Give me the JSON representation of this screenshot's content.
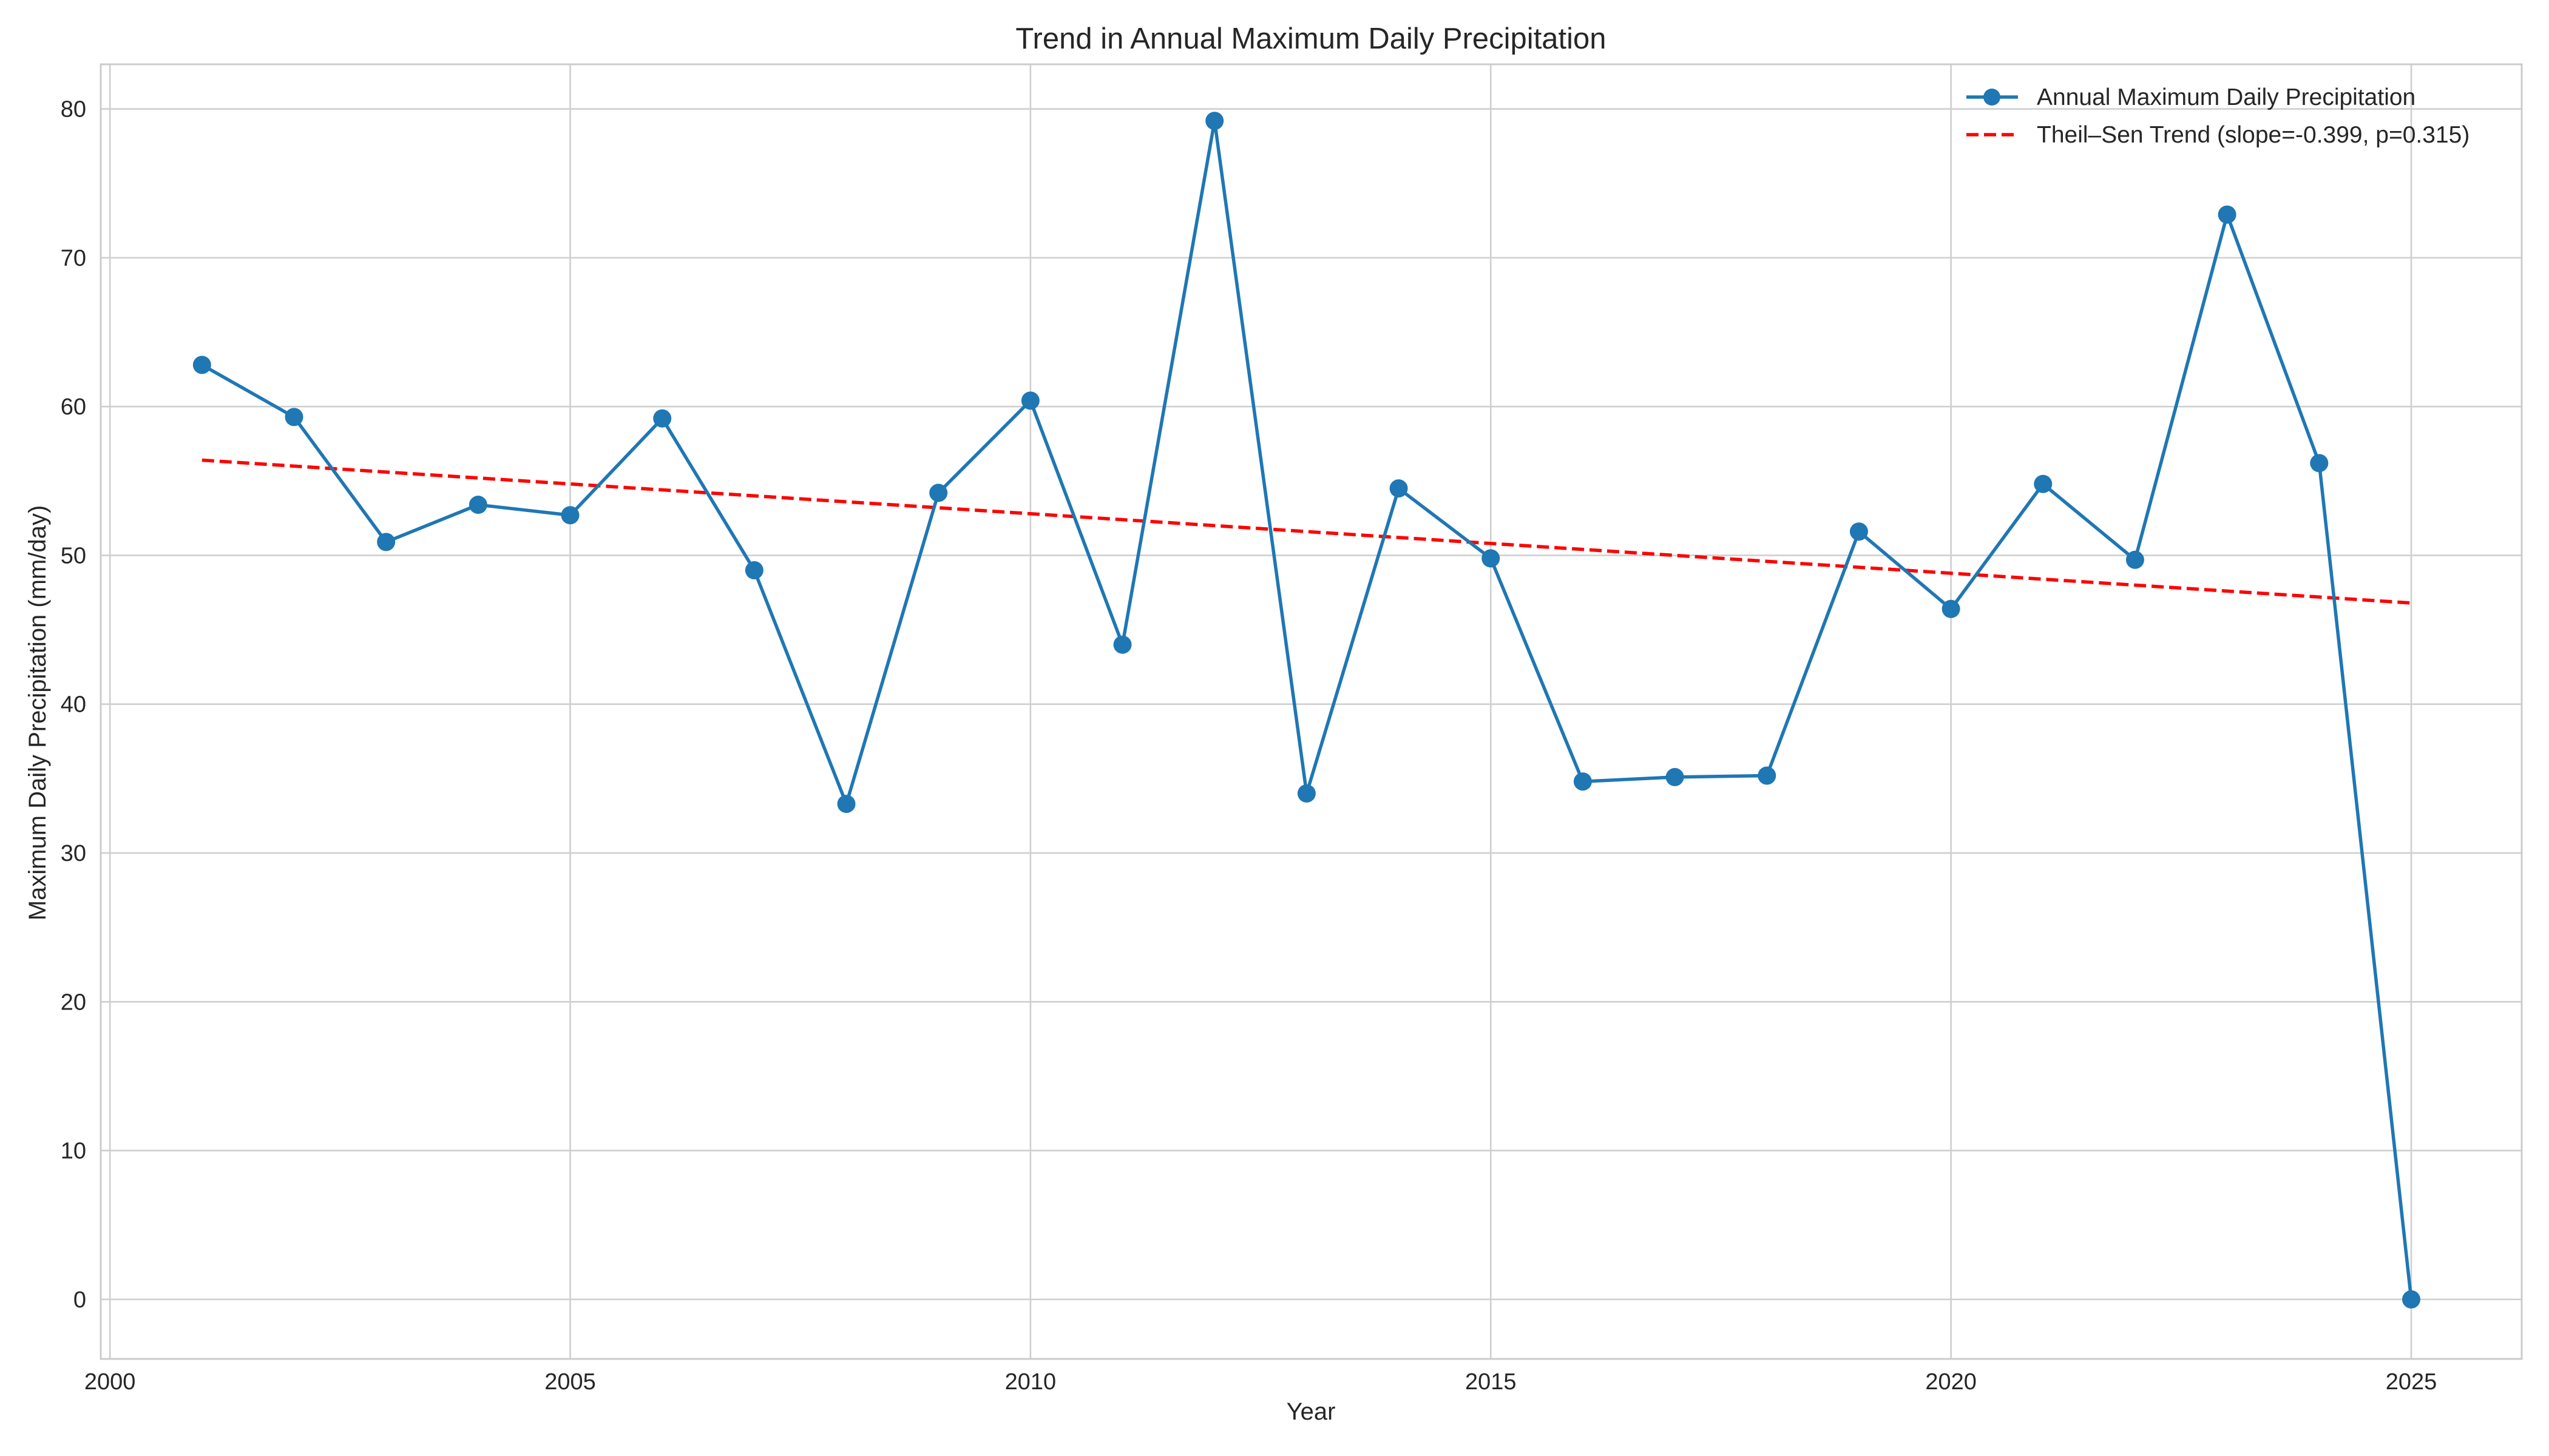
{
  "chart_data": {
    "type": "line",
    "title": "Trend in Annual Maximum Daily Precipitation",
    "xlabel": "Year",
    "ylabel": "Maximum Daily Precipitation (mm/day)",
    "xlim": [
      1999.9,
      2026.2
    ],
    "ylim": [
      -4,
      83
    ],
    "xticks": [
      2000,
      2005,
      2010,
      2015,
      2020,
      2025
    ],
    "yticks": [
      0,
      10,
      20,
      30,
      40,
      50,
      60,
      70,
      80
    ],
    "grid": true,
    "legend_position": "top-right",
    "x": [
      2001,
      2002,
      2003,
      2004,
      2005,
      2006,
      2007,
      2008,
      2009,
      2010,
      2011,
      2012,
      2013,
      2014,
      2015,
      2016,
      2017,
      2018,
      2019,
      2020,
      2021,
      2022,
      2023,
      2024,
      2025
    ],
    "series": [
      {
        "name": "Annual Maximum Daily Precipitation",
        "style": "line-with-markers",
        "color": "#1f77b4",
        "values": [
          62.8,
          59.3,
          50.9,
          53.4,
          52.7,
          59.2,
          49.0,
          33.3,
          54.2,
          60.4,
          44.0,
          79.2,
          34.0,
          54.5,
          49.8,
          34.8,
          35.1,
          35.2,
          51.6,
          46.4,
          54.8,
          49.7,
          72.9,
          56.2,
          0.0
        ]
      },
      {
        "name": "Theil–Sen Trend (slope=-0.399, p=0.315)",
        "style": "dashed",
        "color": "#ff0000",
        "x": [
          2001,
          2025
        ],
        "values": [
          56.4,
          46.8
        ]
      }
    ]
  }
}
